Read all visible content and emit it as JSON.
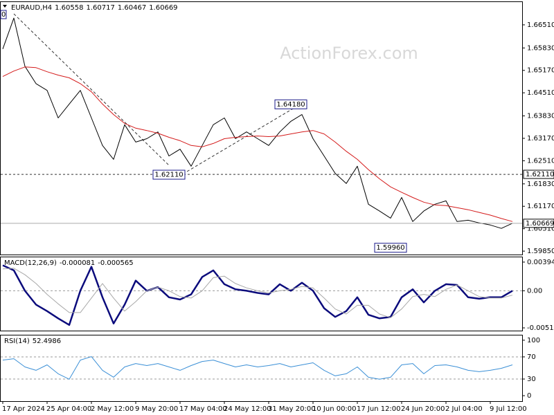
{
  "watermark": "ActionForex.com",
  "chart_data": [
    {
      "type": "line",
      "title": "EURAUD,H4",
      "ohlc": [
        1.60558,
        1.60717,
        1.60467,
        1.60669
      ],
      "clipped_label": "0",
      "categories": [
        "17 Apr 2024",
        null,
        null,
        null,
        "25 Apr 04:00",
        null,
        null,
        null,
        "2 May 12:00",
        null,
        null,
        null,
        "9 May 20:00",
        null,
        null,
        null,
        "17 May 04:00",
        null,
        null,
        null,
        "24 May 12:00",
        null,
        null,
        null,
        "31 May 20:00",
        null,
        null,
        null,
        "10 Jun 00:00",
        null,
        null,
        null,
        "17 Jun 12:00",
        null,
        null,
        null,
        "24 Jun 20:00",
        null,
        null,
        null,
        "2 Jul 04:00",
        null,
        null,
        null,
        "9 Jul 12:00",
        null,
        null
      ],
      "series": [
        {
          "color": "#000000",
          "values": [
            1.658,
            1.6671,
            1.6529,
            1.6478,
            1.6458,
            1.6377,
            1.6418,
            1.6458,
            1.6377,
            1.6296,
            1.6255,
            1.6357,
            1.6306,
            1.6316,
            1.6336,
            1.6265,
            1.6285,
            1.6235,
            1.6296,
            1.6357,
            1.6377,
            1.6316,
            1.6336,
            1.6316,
            1.6296,
            1.6336,
            1.6367,
            1.6387,
            1.6316,
            1.6265,
            1.6214,
            1.6184,
            1.6235,
            1.6123,
            1.6103,
            1.6082,
            1.6143,
            1.6072,
            1.6103,
            1.6123,
            1.6133,
            1.6072,
            1.6076,
            1.6068,
            1.6062,
            1.6052,
            1.6067
          ]
        },
        {
          "color": "#d41a1a",
          "values": [
            1.6499,
            1.6515,
            1.6527,
            1.6525,
            1.6513,
            1.6503,
            1.6495,
            1.6478,
            1.6454,
            1.6418,
            1.6387,
            1.6361,
            1.6347,
            1.634,
            1.6332,
            1.632,
            1.631,
            1.6296,
            1.6292,
            1.6302,
            1.6316,
            1.632,
            1.6322,
            1.6324,
            1.6322,
            1.6324,
            1.633,
            1.6336,
            1.634,
            1.633,
            1.6306,
            1.6279,
            1.6255,
            1.6225,
            1.6198,
            1.6174,
            1.6158,
            1.6143,
            1.6129,
            1.6121,
            1.6119,
            1.6113,
            1.6107,
            1.6099,
            1.6091,
            1.6081,
            1.6072
          ]
        }
      ],
      "ylim": [
        1.5975,
        1.6718
      ],
      "yticks": [
        {
          "value": 1.6651,
          "label": "1.66510"
        },
        {
          "value": 1.6583,
          "label": "1.65830"
        },
        {
          "value": 1.6517,
          "label": "1.65170"
        },
        {
          "value": 1.6451,
          "label": "1.64510"
        },
        {
          "value": 1.6383,
          "label": "1.63830"
        },
        {
          "value": 1.6317,
          "label": "1.63170"
        },
        {
          "value": 1.6251,
          "label": "1.62510"
        },
        {
          "value": 1.6183,
          "label": "1.61830"
        },
        {
          "value": 1.6117,
          "label": "1.61170"
        },
        {
          "value": 1.6051,
          "label": "1.60510"
        },
        {
          "value": 1.5985,
          "label": "1.59850"
        }
      ],
      "hlines": [
        {
          "value": 1.6211,
          "label": "1.62110"
        },
        {
          "value": 1.60669,
          "label": "1.60669"
        }
      ],
      "annotations": [
        {
          "x": 26,
          "value": 1.6418,
          "label": "1.64180"
        },
        {
          "x": 15,
          "value": 1.6211,
          "label": "1.62110"
        },
        {
          "x": 35,
          "value": 1.5996,
          "label": "1.59960"
        }
      ]
    },
    {
      "type": "line",
      "title": "MACD(12,26,9)",
      "readings": [
        -8.1e-05,
        -0.000565
      ],
      "series": [
        {
          "color": "#0b0b7c",
          "values": [
            0.0035,
            0.0028,
            0.0,
            -0.0019,
            -0.0028,
            -0.0038,
            -0.0047,
            0.0,
            0.0033,
            -0.0009,
            -0.0045,
            -0.0019,
            0.0014,
            0.0,
            0.0005,
            -0.0009,
            -0.0012,
            -0.0005,
            0.0019,
            0.0028,
            0.0009,
            0.0002,
            0.0,
            -0.0003,
            -0.0005,
            0.0009,
            0.0,
            0.0011,
            0.0,
            -0.0024,
            -0.0036,
            -0.0028,
            -0.0009,
            -0.0033,
            -0.0038,
            -0.0036,
            -0.0009,
            0.0002,
            -0.0016,
            0.0,
            0.0009,
            0.0008,
            -0.0009,
            -0.0011,
            -0.0009,
            -0.0009,
            0.0
          ]
        },
        {
          "color": "#a8a8a8",
          "values": [
            0.003,
            0.0031,
            0.0022,
            0.001,
            -0.0005,
            -0.0018,
            -0.003,
            -0.003,
            -0.001,
            0.001,
            -0.001,
            -0.0028,
            -0.0015,
            0.0,
            0.0005,
            0.0,
            -0.0008,
            -0.001,
            0.0,
            0.0018,
            0.002,
            0.001,
            0.0004,
            0.0,
            -0.0003,
            0.0,
            0.0002,
            0.0006,
            0.0004,
            -0.001,
            -0.0025,
            -0.0032,
            -0.002,
            -0.002,
            -0.0032,
            -0.0037,
            -0.0025,
            -0.0008,
            -0.0005,
            -0.0008,
            0.0002,
            0.0008,
            0.0,
            -0.0008,
            -0.001,
            -0.001,
            -0.0006
          ]
        }
      ],
      "ylim": [
        -0.00548,
        0.0046
      ],
      "yticks": [
        0.003941,
        {
          "value": 0,
          "label": "0.00"
        },
        -0.005103
      ],
      "levels": [
        0
      ]
    },
    {
      "type": "line",
      "title": "RSI(14)",
      "readings": [
        52.4986
      ],
      "series": [
        {
          "color": "#3a8fd6",
          "values": [
            64.2,
            66.7,
            51.9,
            45.7,
            55.6,
            39.5,
            29.6,
            64.2,
            70.4,
            45.7,
            33.3,
            51.9,
            58.0,
            54.3,
            58.0,
            51.9,
            45.7,
            54.3,
            61.7,
            64.2,
            58.0,
            51.9,
            55.6,
            51.9,
            54.3,
            58.0,
            51.9,
            55.6,
            59.3,
            45.7,
            35.8,
            39.5,
            51.9,
            33.3,
            29.6,
            33.3,
            55.6,
            58.0,
            39.5,
            54.3,
            55.6,
            51.9,
            45.7,
            43.2,
            45.7,
            49.4,
            55.6
          ]
        }
      ],
      "ylim": [
        -9.9,
        108.6
      ],
      "yticks": [
        100,
        70,
        30,
        0
      ],
      "levels": [
        30,
        70
      ]
    }
  ]
}
